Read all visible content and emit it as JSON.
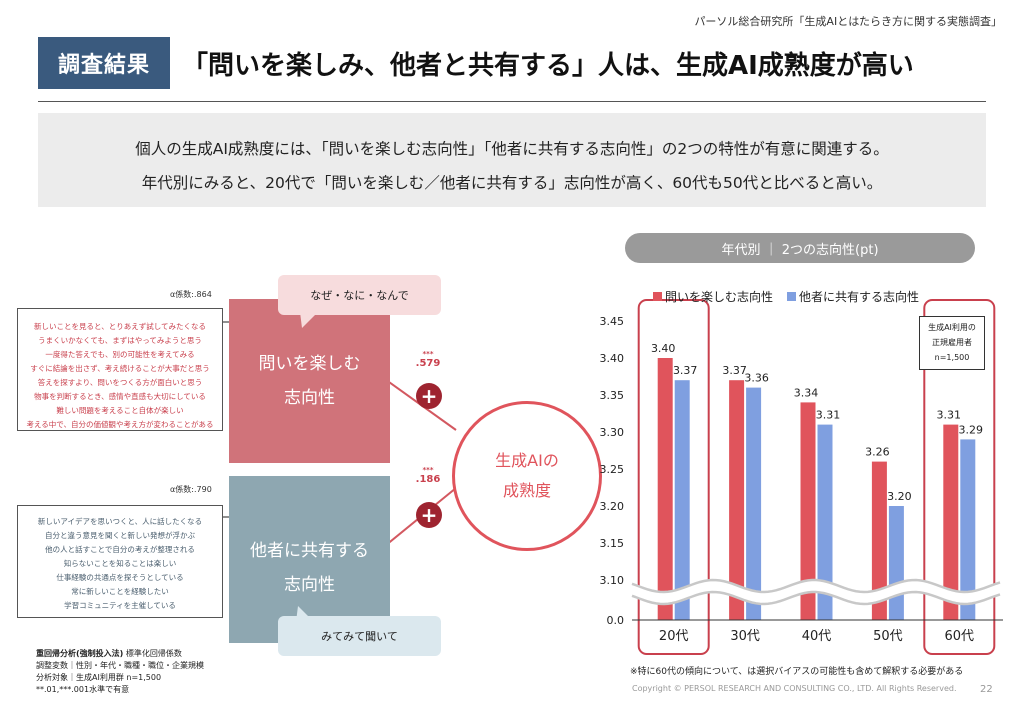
{
  "header": {
    "source": "パーソル総合研究所「生成AIとはたらき方に関する実態調査」",
    "badge": "調査結果",
    "headline": "「問いを楽しみ、他者と共有する」人は、生成AI成熟度が高い"
  },
  "summary": {
    "line1": "個人の生成AI成熟度には、「問いを楽しむ志向性」「他者に共有する志向性」の2つの特性が有意に関連する。",
    "line2": "年代別にみると、20代で「問いを楽しむ／他者に共有する」志向性が高く、60代も50代と比べると高い。"
  },
  "model": {
    "factor1": {
      "alpha": "α係数:.864",
      "items": [
        "新しいことを見ると、とりあえず試してみたくなる",
        "うまくいかなくても、まずはやってみようと思う",
        "一度得た答えでも、別の可能性を考えてみる",
        "すぐに結論を出さず、考え続けることが大事だと思う",
        "答えを探すより、問いをつくる方が面白いと思う",
        "物事を判断するとき、感情や直感も大切にしている",
        "難しい問題を考えること自体が楽しい",
        "考える中で、自分の価値観や考え方が変わることがある"
      ],
      "label_line1": "問いを楽しむ",
      "label_line2": "志向性",
      "bubble": "なぜ・なに・なんで",
      "stars": "***",
      "coef": ".579"
    },
    "factor2": {
      "alpha": "α係数:.790",
      "items": [
        "新しいアイデアを思いつくと、人に話したくなる",
        "自分と違う意見を聞くと新しい発想が浮かぶ",
        "他の人と話すことで自分の考えが整理される",
        "知らないことを知ることは楽しい",
        "仕事経験の共通点を探そうとしている",
        "常に新しいことを経験したい",
        "学習コミュニティを主催している"
      ],
      "label_line1": "他者に共有する",
      "label_line2": "志向性",
      "bubble": "みてみて聞いて",
      "stars": "***",
      "coef": ".186"
    },
    "plus": "+",
    "target_line1": "生成AIの",
    "target_line2": "成熟度",
    "notes": {
      "line1_bold": "重回帰分析(強制投入法)",
      "line1_rest": " 標準化回帰係数",
      "line2": "調整変数｜性別・年代・職種・職位・企業規模",
      "line3": "分析対象｜生成AI利用群 n=1,500",
      "line4": "**.01,***.001水準で有意"
    }
  },
  "chart_panel": {
    "pill": "年代別 ｜ 2つの志向性(pt)",
    "sample_line1": "生成AI利用の",
    "sample_line2": "正規雇用者",
    "sample_line3": "n=1,500",
    "footnote": "※特に60代の傾向について、は選択バイアスの可能性も含めて解釈する必要がある"
  },
  "chart_data": {
    "type": "bar",
    "title": "年代別 ｜ 2つの志向性(pt)",
    "categories": [
      "20代",
      "30代",
      "40代",
      "50代",
      "60代"
    ],
    "series": [
      {
        "name": "問いを楽しむ志向性",
        "color": "#e0545c",
        "values": [
          3.4,
          3.37,
          3.34,
          3.26,
          3.31
        ]
      },
      {
        "name": "他者に共有する志向性",
        "color": "#7f9fe0",
        "values": [
          3.37,
          3.36,
          3.31,
          3.2,
          3.29
        ]
      }
    ],
    "yticks": [
      "3.45",
      "3.40",
      "3.35",
      "3.30",
      "3.25",
      "3.20",
      "3.15",
      "3.10",
      "0.0"
    ],
    "ylim": [
      3.1,
      3.45
    ],
    "axis_break": true,
    "highlighted": [
      "20代",
      "60代"
    ],
    "legend_position": "top",
    "grid": false
  },
  "footer": {
    "copyright": "Copyright © PERSOL RESEARCH AND CONSULTING CO., LTD. All Rights Reserved.",
    "page": "22"
  }
}
